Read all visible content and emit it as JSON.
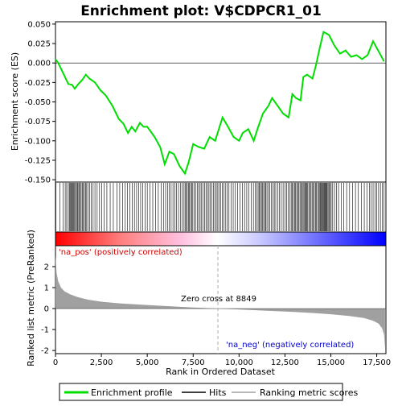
{
  "chart_data": {
    "type": "line",
    "title": "Enrichment plot: V$CDPCR1_01",
    "xlabel": "Rank in Ordered Dataset",
    "ylabel_top": "Enrichment score (ES)",
    "ylabel_bottom": "Ranked list metric (PreRanked)",
    "x_range": [
      0,
      18000
    ],
    "x_ticks": [
      0,
      2500,
      5000,
      7500,
      10000,
      12500,
      15000,
      17500
    ],
    "x_tick_labels": [
      "0",
      "2,500",
      "5,000",
      "7,500",
      "10,000",
      "12,500",
      "15,000",
      "17,500"
    ],
    "es_ylim": [
      -0.153,
      0.053
    ],
    "es_ticks": [
      0.05,
      0.025,
      0.0,
      -0.025,
      -0.05,
      -0.075,
      -0.1,
      -0.125,
      -0.15
    ],
    "es_tick_labels": [
      "0.050",
      "0.025",
      "0.000",
      "-0.025",
      "-0.050",
      "-0.075",
      "-0.100",
      "-0.125",
      "-0.150"
    ],
    "metric_ylim": [
      -2.15,
      3.0
    ],
    "metric_ticks": [
      2,
      1,
      0,
      -1,
      -2
    ],
    "metric_tick_labels": [
      "2",
      "1",
      "0",
      "-1",
      "-2"
    ],
    "enrichment_profile": {
      "name": "Enrichment profile",
      "color": "#00dd00",
      "points": [
        [
          0,
          0.005
        ],
        [
          150,
          0.0
        ],
        [
          400,
          -0.012
        ],
        [
          700,
          -0.027
        ],
        [
          900,
          -0.028
        ],
        [
          1050,
          -0.033
        ],
        [
          1250,
          -0.027
        ],
        [
          1450,
          -0.022
        ],
        [
          1650,
          -0.015
        ],
        [
          1850,
          -0.02
        ],
        [
          2150,
          -0.025
        ],
        [
          2450,
          -0.035
        ],
        [
          2750,
          -0.042
        ],
        [
          3100,
          -0.055
        ],
        [
          3450,
          -0.072
        ],
        [
          3700,
          -0.078
        ],
        [
          3950,
          -0.09
        ],
        [
          4150,
          -0.082
        ],
        [
          4350,
          -0.088
        ],
        [
          4600,
          -0.077
        ],
        [
          4800,
          -0.082
        ],
        [
          5000,
          -0.082
        ],
        [
          5400,
          -0.095
        ],
        [
          5700,
          -0.108
        ],
        [
          5950,
          -0.13
        ],
        [
          6200,
          -0.114
        ],
        [
          6450,
          -0.117
        ],
        [
          6750,
          -0.132
        ],
        [
          7050,
          -0.142
        ],
        [
          7250,
          -0.128
        ],
        [
          7500,
          -0.104
        ],
        [
          7800,
          -0.108
        ],
        [
          8100,
          -0.11
        ],
        [
          8400,
          -0.095
        ],
        [
          8700,
          -0.1
        ],
        [
          8900,
          -0.085
        ],
        [
          9100,
          -0.07
        ],
        [
          9400,
          -0.082
        ],
        [
          9700,
          -0.095
        ],
        [
          10000,
          -0.1
        ],
        [
          10200,
          -0.09
        ],
        [
          10500,
          -0.085
        ],
        [
          10800,
          -0.1
        ],
        [
          11000,
          -0.085
        ],
        [
          11300,
          -0.065
        ],
        [
          11600,
          -0.055
        ],
        [
          11800,
          -0.045
        ],
        [
          12100,
          -0.055
        ],
        [
          12400,
          -0.065
        ],
        [
          12700,
          -0.07
        ],
        [
          12900,
          -0.04
        ],
        [
          13100,
          -0.045
        ],
        [
          13350,
          -0.048
        ],
        [
          13500,
          -0.018
        ],
        [
          13700,
          -0.015
        ],
        [
          14000,
          -0.02
        ],
        [
          14200,
          -0.002
        ],
        [
          14400,
          0.02
        ],
        [
          14600,
          0.04
        ],
        [
          14900,
          0.036
        ],
        [
          15200,
          0.022
        ],
        [
          15500,
          0.012
        ],
        [
          15800,
          0.016
        ],
        [
          16100,
          0.008
        ],
        [
          16400,
          0.01
        ],
        [
          16700,
          0.005
        ],
        [
          17000,
          0.01
        ],
        [
          17300,
          0.028
        ],
        [
          17600,
          0.015
        ],
        [
          17900,
          0.002
        ]
      ]
    },
    "hits": [
      20,
      250,
      420,
      530,
      610,
      700,
      760,
      800,
      860,
      900,
      940,
      990,
      1040,
      1090,
      1140,
      1190,
      1230,
      1290,
      1350,
      1400,
      1460,
      1520,
      1580,
      1640,
      1700,
      1780,
      1860,
      1950,
      2050,
      2150,
      2270,
      2400,
      2520,
      2650,
      2800,
      2980,
      3150,
      3350,
      3500,
      3650,
      3800,
      3920,
      4050,
      4180,
      4300,
      4420,
      4530,
      4640,
      4760,
      4880,
      5000,
      5150,
      5300,
      5450,
      5600,
      5750,
      5880,
      6000,
      6100,
      6200,
      6300,
      6400,
      6500,
      6600,
      6700,
      6800,
      6900,
      7000,
      7060,
      7120,
      7180,
      7240,
      7300,
      7360,
      7420,
      7480,
      7550,
      7630,
      7720,
      7800,
      7880,
      7960,
      8040,
      8120,
      8200,
      8280,
      8360,
      8440,
      8520,
      8600,
      8680,
      8760,
      8840,
      8920,
      9000,
      9080,
      9160,
      9250,
      9350,
      9450,
      9560,
      9680,
      9800,
      9920,
      10050,
      10180,
      10300,
      10420,
      10540,
      10660,
      10780,
      10880,
      10960,
      11040,
      11100,
      11160,
      11220,
      11280,
      11340,
      11400,
      11460,
      11520,
      11600,
      11680,
      11760,
      11840,
      11920,
      12000,
      12100,
      12200,
      12300,
      12400,
      12500,
      12600,
      12680,
      12760,
      12840,
      12900,
      12960,
      13020,
      13080,
      13140,
      13200,
      13260,
      13320,
      13380,
      13440,
      13490,
      13540,
      13590,
      13640,
      13690,
      13740,
      13800,
      13860,
      13920,
      13980,
      14040,
      14100,
      14160,
      14220,
      14280,
      14340,
      14400,
      14440,
      14480,
      14520,
      14560,
      14600,
      14640,
      14680,
      14720,
      14760,
      14800,
      14850,
      14900,
      14960,
      15020,
      15100,
      15200,
      15300,
      15420,
      15560,
      15700,
      15860,
      16020,
      16180,
      16340,
      16500,
      16660,
      16820,
      16980,
      17100,
      17200,
      17300,
      17400,
      17500,
      17600,
      17700,
      17800,
      17900
    ],
    "metric_curve": [
      [
        0,
        2.55
      ],
      [
        60,
        1.7
      ],
      [
        150,
        1.3
      ],
      [
        300,
        1.0
      ],
      [
        500,
        0.82
      ],
      [
        800,
        0.68
      ],
      [
        1200,
        0.55
      ],
      [
        1800,
        0.42
      ],
      [
        2500,
        0.33
      ],
      [
        3500,
        0.25
      ],
      [
        5000,
        0.17
      ],
      [
        6500,
        0.1
      ],
      [
        7500,
        0.05
      ],
      [
        8849,
        0.0
      ],
      [
        10000,
        -0.04
      ],
      [
        11500,
        -0.1
      ],
      [
        13000,
        -0.16
      ],
      [
        14000,
        -0.21
      ],
      [
        15000,
        -0.27
      ],
      [
        16000,
        -0.35
      ],
      [
        16800,
        -0.45
      ],
      [
        17300,
        -0.58
      ],
      [
        17600,
        -0.72
      ],
      [
        17800,
        -0.95
      ],
      [
        17900,
        -1.25
      ],
      [
        17950,
        -1.9
      ]
    ],
    "zero_cross_label": "Zero cross at 8849",
    "zero_cross_x": 8849,
    "pos_label": "'na_pos' (positively correlated)",
    "neg_label": "'na_neg' (negatively correlated)",
    "legend": {
      "enrichment": "Enrichment profile",
      "hits": "Hits",
      "ranking": "Ranking metric scores"
    },
    "colors": {
      "enrichment": "#00dd00",
      "hits": "#000000",
      "metric_fill": "#a0a0a0",
      "pos_label": "#cc0000",
      "neg_label": "#0000cc",
      "zero_line": "#aaaaaa"
    }
  }
}
